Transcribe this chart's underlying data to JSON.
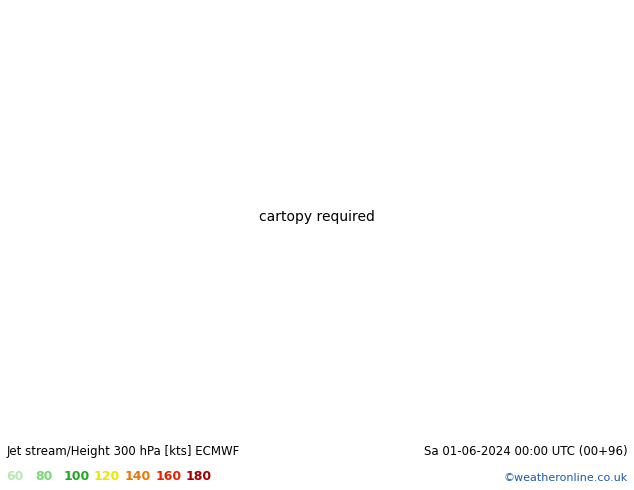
{
  "title_left": "Jet stream/Height 300 hPa [kts] ECMWF",
  "title_right": "Sa 01-06-2024 00:00 UTC (00+96)",
  "credit": "©weatheronline.co.uk",
  "legend_values": [
    "60",
    "80",
    "100",
    "120",
    "140",
    "160",
    "180"
  ],
  "legend_colors": [
    "#b8e8b0",
    "#78d878",
    "#20a820",
    "#e8e800",
    "#e87800",
    "#e82000",
    "#a00000"
  ],
  "land_color": "#d8d8d8",
  "sea_color": "#e8e8e8",
  "coast_color": "#a0a0a0",
  "contour_color": "#000000",
  "jet_color": "#000000",
  "label_fontsize": 7,
  "title_fontsize": 8.5,
  "figsize": [
    6.34,
    4.9
  ],
  "dpi": 100,
  "extent": [
    -55,
    45,
    25,
    72
  ],
  "jet_green_light": "#c8ecc0",
  "jet_green_mid": "#88d888",
  "jet_green_dark": "#40b840",
  "jet_green_bright": "#10c010"
}
